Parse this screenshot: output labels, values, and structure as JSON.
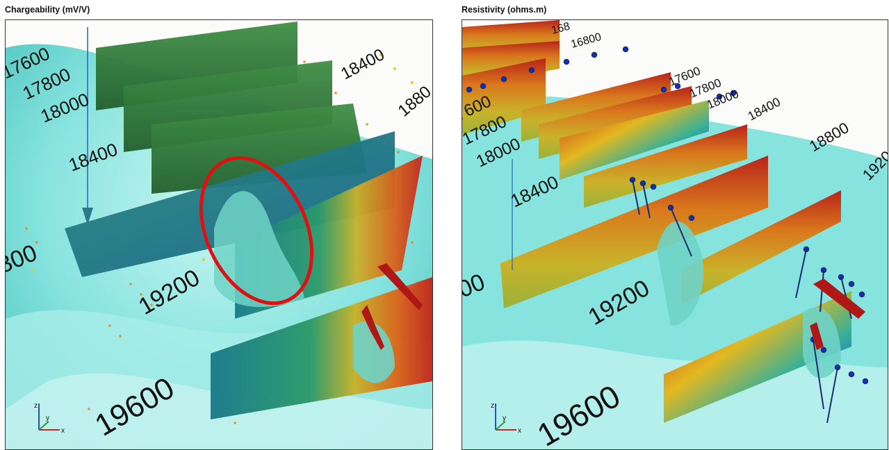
{
  "panels": [
    {
      "title": "Chargeability (mV/V)",
      "labels": [
        "17600",
        "17800",
        "18000",
        "18400",
        "18400",
        "1880",
        "300",
        "19200",
        "19600"
      ],
      "axes": {
        "z": "z",
        "y": "y",
        "x": "x"
      },
      "annotation": "red-ellipse"
    },
    {
      "title": "Resistivity (ohms.m)",
      "labels": [
        "168",
        "16800",
        "17600",
        "17800",
        "18000",
        "18400",
        "7600",
        "17800",
        "18000",
        "18400",
        "18800",
        "1920",
        "00",
        "19200",
        "19600"
      ],
      "axes": {
        "z": "z",
        "y": "y",
        "x": "x"
      }
    }
  ],
  "colors": {
    "iso_surface": "#7fe3df",
    "charge_section": "#2f7d3a",
    "resist_section_high": "#c0281c",
    "resist_section_mid": "#e0b020",
    "resist_section_low": "#1040a0",
    "highlight": "#e01010",
    "drillhole": "#1030c0"
  }
}
